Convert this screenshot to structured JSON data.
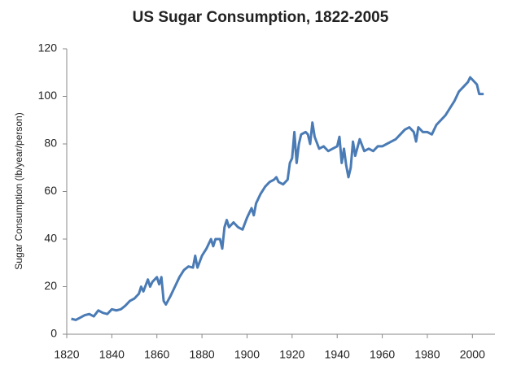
{
  "chart_data": {
    "type": "line",
    "title": "US Sugar Consumption, 1822-2005",
    "y_label": "Sugar Consumption (lb/year/person)",
    "color": "#4a7bb5",
    "x": [
      1822,
      1824,
      1826,
      1828,
      1830,
      1832,
      1834,
      1836,
      1838,
      1840,
      1842,
      1844,
      1846,
      1848,
      1850,
      1852,
      1853,
      1854,
      1856,
      1857,
      1858,
      1860,
      1861,
      1862,
      1863,
      1864,
      1866,
      1868,
      1870,
      1872,
      1874,
      1876,
      1877,
      1878,
      1880,
      1882,
      1884,
      1885,
      1886,
      1888,
      1889,
      1890,
      1891,
      1892,
      1894,
      1896,
      1898,
      1900,
      1902,
      1903,
      1904,
      1906,
      1908,
      1910,
      1912,
      1913,
      1914,
      1916,
      1918,
      1919,
      1920,
      1921,
      1922,
      1923,
      1924,
      1926,
      1927,
      1928,
      1929,
      1930,
      1932,
      1934,
      1936,
      1938,
      1940,
      1941,
      1942,
      1943,
      1944,
      1945,
      1946,
      1947,
      1948,
      1950,
      1952,
      1954,
      1956,
      1958,
      1960,
      1962,
      1964,
      1966,
      1968,
      1970,
      1972,
      1974,
      1975,
      1976,
      1978,
      1980,
      1982,
      1984,
      1986,
      1988,
      1990,
      1992,
      1994,
      1996,
      1998,
      1999,
      2000,
      2002,
      2003,
      2005
    ],
    "values": [
      6.5,
      6,
      7,
      8,
      8.5,
      7.5,
      10,
      9,
      8.5,
      10.5,
      10,
      10.5,
      12,
      14,
      15,
      17,
      20,
      18,
      23,
      20,
      22,
      24,
      21,
      24,
      14,
      12.5,
      16,
      20,
      24,
      27,
      28.5,
      28,
      33,
      28,
      33,
      36,
      40,
      37,
      40,
      40,
      36,
      45,
      48,
      45,
      47,
      45,
      44,
      49,
      53,
      50,
      55,
      59,
      62,
      64,
      65,
      66,
      64,
      63,
      65,
      72,
      74,
      85,
      72,
      80,
      84,
      85,
      84,
      80,
      89,
      83,
      78,
      79,
      77,
      78,
      79,
      83,
      72,
      78,
      71,
      66,
      70,
      81,
      75,
      82,
      77,
      78,
      77,
      79,
      79,
      80,
      81,
      82,
      84,
      86,
      87,
      85,
      81,
      87,
      85,
      85,
      84,
      88,
      90,
      92,
      95,
      98,
      102,
      104,
      106,
      108,
      107,
      105,
      101,
      101
    ],
    "xlim": [
      1820,
      2010
    ],
    "xticks": [
      1820,
      1840,
      1860,
      1880,
      1900,
      1920,
      1940,
      1960,
      1980,
      2000
    ],
    "ylim": [
      0,
      120
    ],
    "yticks": [
      0,
      20,
      40,
      60,
      80,
      100,
      120
    ],
    "grid": false
  }
}
